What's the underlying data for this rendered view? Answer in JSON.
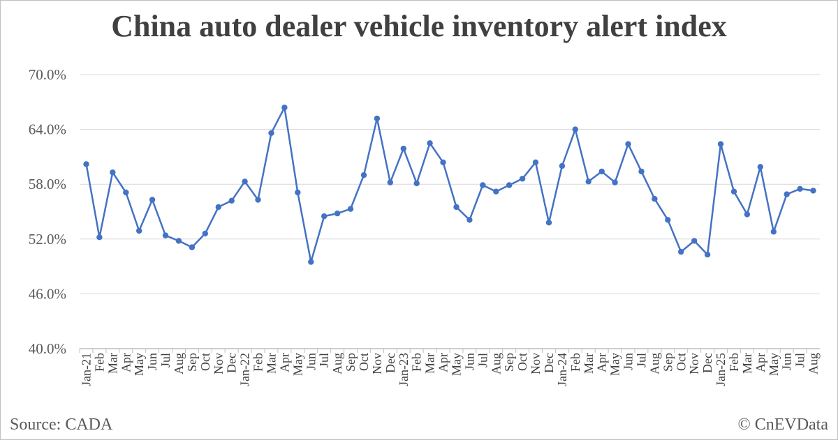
{
  "footer": {
    "source": "Source: CADA",
    "credit": "© CnEVData"
  },
  "colors": {
    "line": "#4472c4",
    "grid": "#d9d9d9",
    "axis": "#bfbfbf"
  },
  "chart_data": {
    "type": "line",
    "title": "China auto dealer vehicle inventory alert index",
    "xlabel": "",
    "ylabel": "",
    "ylim": [
      40,
      70
    ],
    "yticks": [
      "40.0%",
      "46.0%",
      "52.0%",
      "58.0%",
      "64.0%",
      "70.0%"
    ],
    "ytick_values": [
      40,
      46,
      52,
      58,
      64,
      70
    ],
    "grid": true,
    "categories": [
      "Jan-21",
      "Feb",
      "Mar",
      "Apr",
      "May",
      "Jun",
      "Jul",
      "Aug",
      "Sep",
      "Oct",
      "Nov",
      "Dec",
      "Jan-22",
      "Feb",
      "Mar",
      "Apr",
      "May",
      "Jun",
      "Jul",
      "Aug",
      "Sep",
      "Oct",
      "Nov",
      "Dec",
      "Jan-23",
      "Feb",
      "Mar",
      "Apr",
      "May",
      "Jun",
      "Jul",
      "Aug",
      "Sep",
      "Oct",
      "Nov",
      "Dec",
      "Jan-24",
      "Feb",
      "Mar",
      "Apr",
      "May",
      "Jun",
      "Jul",
      "Aug",
      "Sep",
      "Oct",
      "Nov",
      "Dec",
      "Jan-25",
      "Feb",
      "Mar",
      "Apr",
      "May",
      "Jun",
      "Jul",
      "Aug"
    ],
    "series": [
      {
        "values": [
          60.2,
          52.2,
          59.3,
          57.1,
          52.9,
          56.3,
          52.4,
          51.8,
          51.1,
          52.6,
          55.5,
          56.2,
          58.3,
          56.3,
          63.6,
          66.4,
          57.1,
          49.5,
          54.5,
          54.8,
          55.3,
          59.0,
          65.2,
          58.2,
          61.9,
          58.1,
          62.5,
          60.4,
          55.5,
          54.1,
          57.9,
          57.2,
          57.9,
          58.6,
          60.4,
          53.8,
          60.0,
          64.0,
          58.3,
          59.4,
          58.2,
          62.4,
          59.4,
          56.4,
          54.1,
          50.6,
          51.8,
          50.3,
          62.4,
          57.2,
          54.7,
          59.9,
          52.8,
          56.9,
          57.5,
          57.3
        ]
      }
    ]
  }
}
